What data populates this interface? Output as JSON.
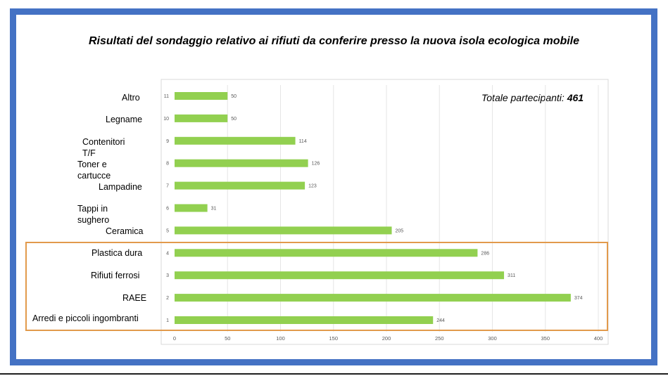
{
  "title": "Risultati del sondaggio relativo ai rifiuti da conferire presso la nuova isola ecologica mobile",
  "total": {
    "label": "Totale partecipanti: ",
    "value": "461"
  },
  "chart_data": {
    "type": "bar",
    "orientation": "horizontal",
    "categories": [
      "Arredi e piccoli ingombranti",
      "RAEE",
      "Rifiuti ferrosi",
      "Plastica dura",
      "Ceramica",
      "Tappi in sughero",
      "Lampadine",
      "Toner e cartucce",
      "Contenitori T/F",
      "Legname",
      "Altro"
    ],
    "row_numbers": [
      "1",
      "2",
      "3",
      "4",
      "5",
      "6",
      "7",
      "8",
      "9",
      "10",
      "11"
    ],
    "values": [
      244,
      374,
      311,
      286,
      205,
      31,
      123,
      126,
      114,
      50,
      50
    ],
    "xlim": [
      0,
      400
    ],
    "xticks": [
      0,
      50,
      100,
      150,
      200,
      250,
      300,
      350,
      400
    ],
    "grid": true,
    "bar_color": "#92d050",
    "highlight_color": "#e29a4c",
    "highlighted_categories": [
      "Arredi e piccoli ingombranti",
      "RAEE",
      "Rifiuti ferrosi",
      "Plastica dura"
    ]
  },
  "colors": {
    "frame": "#4472c4",
    "gridline": "#e6e6e6",
    "axis_text": "#595959"
  }
}
